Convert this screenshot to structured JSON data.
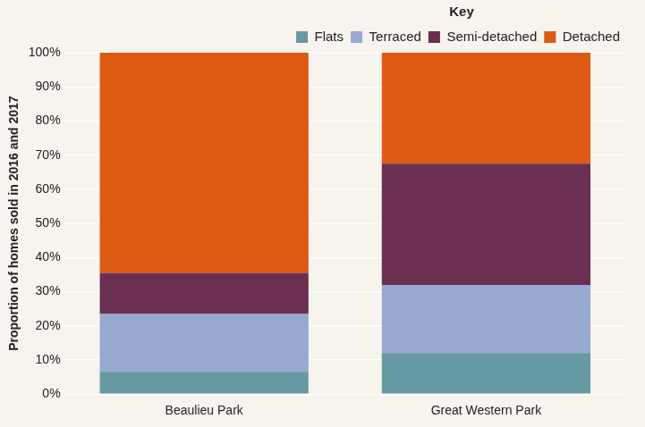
{
  "chart_data": {
    "type": "bar",
    "stacked": true,
    "y_label": "Proportion of homes sold in 2016 and 2017",
    "legend_title": "Key",
    "legend": "upper right",
    "grid": true,
    "categories": [
      "Beaulieu Park",
      "Great Western Park"
    ],
    "series": [
      {
        "name": "Flats",
        "color": "#6799a2",
        "values": [
          6.5,
          12
        ]
      },
      {
        "name": "Terraced",
        "color": "#97a9d1",
        "values": [
          17,
          20
        ]
      },
      {
        "name": "Semi-detached",
        "color": "#6b2f52",
        "values": [
          12,
          35.5
        ]
      },
      {
        "name": "Detached",
        "color": "#dd5a13",
        "values": [
          64.5,
          32.5
        ]
      }
    ],
    "ylim": [
      0,
      100
    ],
    "yticks": [
      {
        "value": 0,
        "label": "0%"
      },
      {
        "value": 10,
        "label": "10%"
      },
      {
        "value": 20,
        "label": "20%"
      },
      {
        "value": 30,
        "label": "30%"
      },
      {
        "value": 40,
        "label": "40%"
      },
      {
        "value": 50,
        "label": "50%"
      },
      {
        "value": 60,
        "label": "60%"
      },
      {
        "value": 70,
        "label": "70%"
      },
      {
        "value": 80,
        "label": "80%"
      },
      {
        "value": 90,
        "label": "90%"
      },
      {
        "value": 100,
        "label": "100%"
      }
    ]
  }
}
